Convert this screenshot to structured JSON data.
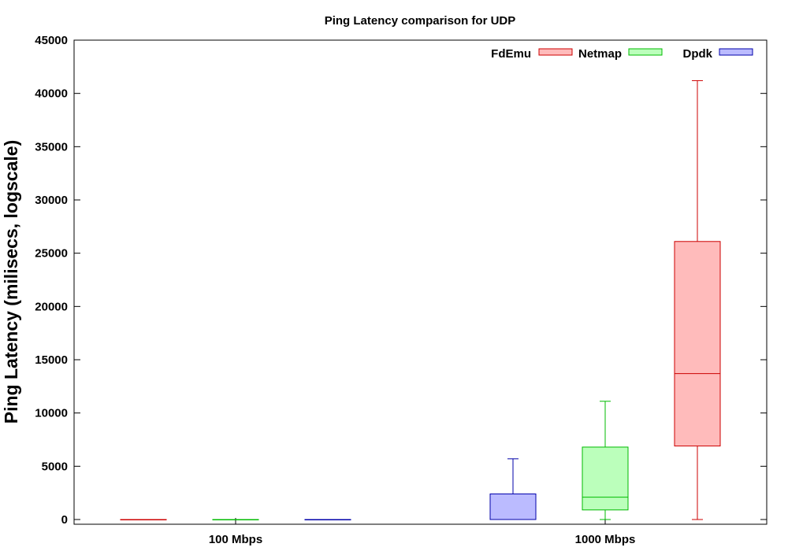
{
  "chart_data": {
    "type": "box",
    "title": "Ping Latency comparison for UDP",
    "xlabel": "",
    "ylabel": "Ping Latency (milisecs, logscale)",
    "ylim": [
      0,
      45000
    ],
    "yticks": [
      0,
      5000,
      10000,
      15000,
      20000,
      25000,
      30000,
      35000,
      40000,
      45000
    ],
    "categories": [
      "100 Mbps",
      "1000 Mbps"
    ],
    "legend_position": "top-right",
    "grid": false,
    "series": [
      {
        "name": "FdEmu",
        "color": "#cc0000",
        "fill": "#ffbbbb",
        "boxes": [
          {
            "category": "100 Mbps",
            "min": 0,
            "q1": 0,
            "median": 0,
            "q3": 0,
            "max": 0
          },
          {
            "category": "1000 Mbps",
            "min": 0,
            "q1": 6900,
            "median": 13700,
            "q3": 26100,
            "max": 41200
          }
        ]
      },
      {
        "name": "Netmap",
        "color": "#00bb00",
        "fill": "#bbffbb",
        "boxes": [
          {
            "category": "100 Mbps",
            "min": 0,
            "q1": 0,
            "median": 0,
            "q3": 0,
            "max": 0
          },
          {
            "category": "1000 Mbps",
            "min": 0,
            "q1": 900,
            "median": 2100,
            "q3": 6800,
            "max": 11100
          }
        ]
      },
      {
        "name": "Dpdk",
        "color": "#0000aa",
        "fill": "#bbbbff",
        "boxes": [
          {
            "category": "100 Mbps",
            "min": 0,
            "q1": 0,
            "median": 0,
            "q3": 0,
            "max": 0
          },
          {
            "category": "1000 Mbps",
            "min": 0,
            "q1": 0,
            "median": 0,
            "q3": 2400,
            "max": 5700
          }
        ]
      }
    ]
  }
}
